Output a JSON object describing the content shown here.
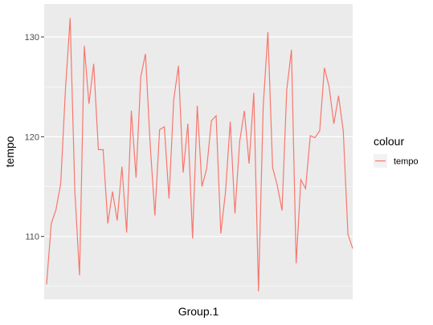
{
  "chart_data": {
    "type": "line",
    "xlabel": "Group.1",
    "ylabel": "tempo",
    "ylim": [
      103.7,
      133.3
    ],
    "y_ticks": [
      110,
      120,
      130
    ],
    "x_ticks_shown": false,
    "grid": true,
    "legend": {
      "title": "colour",
      "position": "right",
      "entries": [
        "tempo"
      ]
    },
    "series": [
      {
        "name": "tempo",
        "color": "#F8766D",
        "values": [
          105.2,
          111.3,
          112.7,
          115.3,
          124.7,
          131.9,
          114.5,
          106.1,
          129.1,
          123.3,
          127.3,
          118.7,
          118.7,
          111.3,
          114.5,
          111.6,
          117.0,
          110.4,
          122.6,
          115.9,
          126.0,
          128.3,
          119.2,
          112.1,
          120.7,
          121.0,
          113.8,
          123.7,
          127.1,
          116.4,
          121.3,
          109.8,
          123.1,
          115.0,
          116.8,
          121.6,
          122.1,
          110.3,
          114.5,
          121.5,
          112.3,
          119.5,
          122.6,
          117.3,
          124.4,
          104.5,
          123.0,
          130.5,
          116.9,
          115.1,
          112.6,
          124.7,
          128.7,
          107.3,
          115.7,
          114.8,
          120.1,
          119.9,
          120.6,
          126.9,
          125.0,
          121.3,
          124.1,
          120.6,
          110.2,
          108.8
        ]
      }
    ]
  }
}
